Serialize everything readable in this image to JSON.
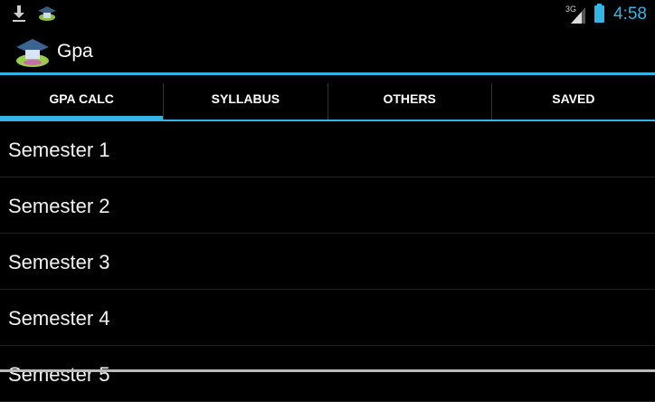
{
  "status_bar": {
    "time": "4:58",
    "network": "3G",
    "icons": [
      "download-icon",
      "app-icon",
      "signal-icon",
      "battery-charging-icon"
    ]
  },
  "action_bar": {
    "title": "Gpa",
    "icon": "graduation-cap-logo"
  },
  "tabs": [
    {
      "label": "GPA CALC",
      "active": true
    },
    {
      "label": "SYLLABUS"
    },
    {
      "label": "OTHERS"
    },
    {
      "label": "SAVED"
    }
  ],
  "list": [
    {
      "label": "Semester 1"
    },
    {
      "label": "Semester 2"
    },
    {
      "label": "Semester 3"
    },
    {
      "label": "Semester 4"
    },
    {
      "label": "Semester 5"
    }
  ],
  "colors": {
    "accent": "#33b5e5",
    "background": "#000000"
  }
}
